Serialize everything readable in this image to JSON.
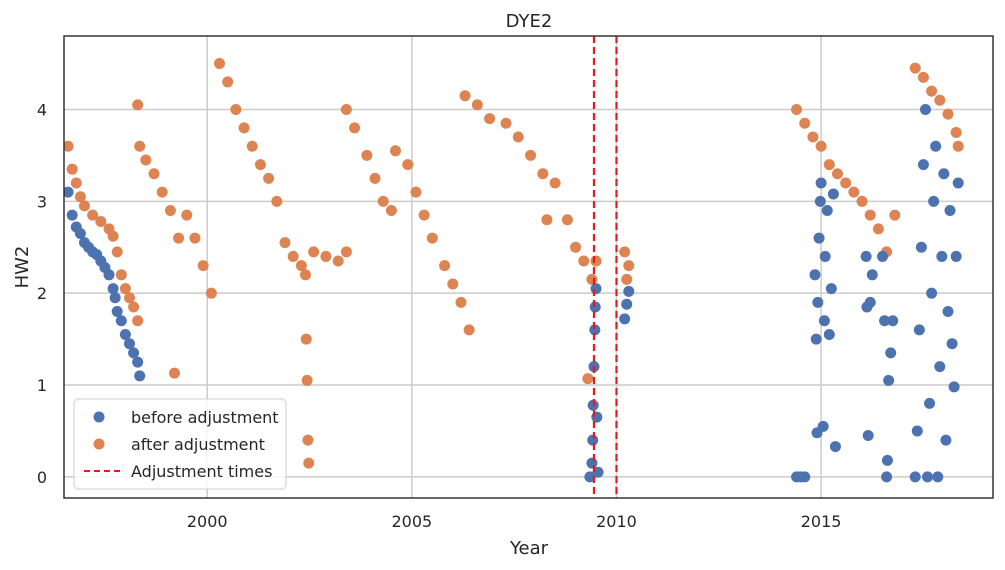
{
  "chart_data": {
    "type": "scatter",
    "title": "DYE2",
    "xlabel": "Year",
    "ylabel": "HW2",
    "xlim": [
      1996.5,
      2019.2
    ],
    "ylim": [
      -0.23,
      4.8
    ],
    "x_ticks": [
      2000,
      2005,
      2010,
      2015
    ],
    "x_tick_labels": [
      "2000",
      "2005",
      "2010",
      "2015"
    ],
    "y_ticks": [
      0,
      1,
      2,
      3,
      4
    ],
    "y_tick_labels": [
      "0",
      "1",
      "2",
      "3",
      "4"
    ],
    "grid": true,
    "legend_position": "lower-left",
    "series": [
      {
        "name": "before adjustment",
        "color": "#4c72b0",
        "marker": "circle",
        "points": [
          [
            1996.6,
            3.1
          ],
          [
            1996.7,
            2.85
          ],
          [
            1996.8,
            2.72
          ],
          [
            1996.9,
            2.65
          ],
          [
            1997.0,
            2.55
          ],
          [
            1997.1,
            2.5
          ],
          [
            1997.2,
            2.45
          ],
          [
            1997.3,
            2.42
          ],
          [
            1997.4,
            2.35
          ],
          [
            1997.5,
            2.28
          ],
          [
            1997.6,
            2.2
          ],
          [
            1997.7,
            2.05
          ],
          [
            1997.75,
            1.95
          ],
          [
            1997.8,
            1.8
          ],
          [
            1997.9,
            1.7
          ],
          [
            1998.0,
            1.55
          ],
          [
            1998.1,
            1.45
          ],
          [
            1998.2,
            1.35
          ],
          [
            1998.3,
            1.25
          ],
          [
            1998.35,
            1.1
          ],
          [
            2009.35,
            0.0
          ],
          [
            2009.4,
            0.15
          ],
          [
            2009.42,
            0.4
          ],
          [
            2009.43,
            0.78
          ],
          [
            2009.45,
            1.2
          ],
          [
            2009.47,
            1.6
          ],
          [
            2009.48,
            1.85
          ],
          [
            2009.5,
            2.05
          ],
          [
            2009.52,
            0.65
          ],
          [
            2009.55,
            0.05
          ],
          [
            2010.2,
            1.72
          ],
          [
            2010.25,
            1.88
          ],
          [
            2010.3,
            2.02
          ],
          [
            2014.4,
            0.0
          ],
          [
            2014.5,
            0.0
          ],
          [
            2014.6,
            0.0
          ],
          [
            2014.85,
            2.2
          ],
          [
            2014.88,
            1.5
          ],
          [
            2014.9,
            0.48
          ],
          [
            2014.92,
            1.9
          ],
          [
            2014.95,
            2.6
          ],
          [
            2014.98,
            3.0
          ],
          [
            2015.0,
            3.2
          ],
          [
            2015.05,
            0.55
          ],
          [
            2015.08,
            1.7
          ],
          [
            2015.1,
            2.4
          ],
          [
            2015.15,
            2.9
          ],
          [
            2015.2,
            1.55
          ],
          [
            2015.25,
            2.05
          ],
          [
            2015.3,
            3.08
          ],
          [
            2015.35,
            0.33
          ],
          [
            2016.1,
            2.4
          ],
          [
            2016.12,
            1.85
          ],
          [
            2016.15,
            0.45
          ],
          [
            2016.2,
            1.9
          ],
          [
            2016.25,
            2.2
          ],
          [
            2016.5,
            2.4
          ],
          [
            2016.55,
            1.7
          ],
          [
            2016.6,
            0.0
          ],
          [
            2016.62,
            0.18
          ],
          [
            2016.65,
            1.05
          ],
          [
            2016.7,
            1.35
          ],
          [
            2016.75,
            1.7
          ],
          [
            2017.3,
            0.0
          ],
          [
            2017.35,
            0.5
          ],
          [
            2017.4,
            1.6
          ],
          [
            2017.45,
            2.5
          ],
          [
            2017.5,
            3.4
          ],
          [
            2017.55,
            4.0
          ],
          [
            2017.6,
            0.0
          ],
          [
            2017.65,
            0.8
          ],
          [
            2017.7,
            2.0
          ],
          [
            2017.75,
            3.0
          ],
          [
            2017.8,
            3.6
          ],
          [
            2017.85,
            0.0
          ],
          [
            2017.9,
            1.2
          ],
          [
            2017.95,
            2.4
          ],
          [
            2018.0,
            3.3
          ],
          [
            2018.05,
            0.4
          ],
          [
            2018.1,
            1.8
          ],
          [
            2018.15,
            2.9
          ],
          [
            2018.2,
            1.45
          ],
          [
            2018.25,
            0.98
          ],
          [
            2018.3,
            2.4
          ],
          [
            2018.35,
            3.2
          ]
        ]
      },
      {
        "name": "after adjustment",
        "color": "#dd8452",
        "marker": "circle",
        "points": [
          [
            1996.6,
            3.6
          ],
          [
            1996.7,
            3.35
          ],
          [
            1996.8,
            3.2
          ],
          [
            1996.9,
            3.05
          ],
          [
            1997.0,
            2.95
          ],
          [
            1997.2,
            2.85
          ],
          [
            1997.4,
            2.78
          ],
          [
            1997.6,
            2.7
          ],
          [
            1997.7,
            2.62
          ],
          [
            1997.8,
            2.45
          ],
          [
            1997.9,
            2.2
          ],
          [
            1998.0,
            2.05
          ],
          [
            1998.1,
            1.95
          ],
          [
            1998.2,
            1.85
          ],
          [
            1998.3,
            1.7
          ],
          [
            1998.3,
            4.05
          ],
          [
            1998.35,
            3.6
          ],
          [
            1998.5,
            3.45
          ],
          [
            1998.7,
            3.3
          ],
          [
            1998.9,
            3.1
          ],
          [
            1999.1,
            2.9
          ],
          [
            1999.2,
            1.13
          ],
          [
            1999.3,
            2.6
          ],
          [
            1999.5,
            2.85
          ],
          [
            1999.7,
            2.6
          ],
          [
            1999.9,
            2.3
          ],
          [
            2000.1,
            2.0
          ],
          [
            2000.3,
            4.5
          ],
          [
            2000.5,
            4.3
          ],
          [
            2000.7,
            4.0
          ],
          [
            2000.9,
            3.8
          ],
          [
            2001.1,
            3.6
          ],
          [
            2001.3,
            3.4
          ],
          [
            2001.5,
            3.25
          ],
          [
            2001.7,
            3.0
          ],
          [
            2001.9,
            2.55
          ],
          [
            2002.1,
            2.4
          ],
          [
            2002.3,
            2.3
          ],
          [
            2002.4,
            2.2
          ],
          [
            2002.42,
            1.5
          ],
          [
            2002.44,
            1.05
          ],
          [
            2002.46,
            0.4
          ],
          [
            2002.48,
            0.15
          ],
          [
            2002.6,
            2.45
          ],
          [
            2002.9,
            2.4
          ],
          [
            2003.2,
            2.35
          ],
          [
            2003.4,
            2.45
          ],
          [
            2003.4,
            4.0
          ],
          [
            2003.6,
            3.8
          ],
          [
            2003.9,
            3.5
          ],
          [
            2004.1,
            3.25
          ],
          [
            2004.3,
            3.0
          ],
          [
            2004.5,
            2.9
          ],
          [
            2004.6,
            3.55
          ],
          [
            2004.9,
            3.4
          ],
          [
            2005.1,
            3.1
          ],
          [
            2005.3,
            2.85
          ],
          [
            2005.5,
            2.6
          ],
          [
            2005.8,
            2.3
          ],
          [
            2006.0,
            2.1
          ],
          [
            2006.2,
            1.9
          ],
          [
            2006.4,
            1.6
          ],
          [
            2006.3,
            4.15
          ],
          [
            2006.6,
            4.05
          ],
          [
            2006.9,
            3.9
          ],
          [
            2007.3,
            3.85
          ],
          [
            2007.6,
            3.7
          ],
          [
            2007.9,
            3.5
          ],
          [
            2008.2,
            3.3
          ],
          [
            2008.3,
            2.8
          ],
          [
            2008.5,
            3.2
          ],
          [
            2008.8,
            2.8
          ],
          [
            2009.0,
            2.5
          ],
          [
            2009.2,
            2.35
          ],
          [
            2009.3,
            1.07
          ],
          [
            2009.4,
            2.15
          ],
          [
            2009.5,
            2.35
          ],
          [
            2010.2,
            2.45
          ],
          [
            2010.3,
            2.3
          ],
          [
            2010.25,
            2.15
          ],
          [
            2014.4,
            4.0
          ],
          [
            2014.6,
            3.85
          ],
          [
            2014.8,
            3.7
          ],
          [
            2015.0,
            3.6
          ],
          [
            2015.2,
            3.4
          ],
          [
            2015.4,
            3.3
          ],
          [
            2015.6,
            3.2
          ],
          [
            2015.8,
            3.1
          ],
          [
            2016.0,
            3.0
          ],
          [
            2016.2,
            2.85
          ],
          [
            2016.4,
            2.7
          ],
          [
            2016.6,
            2.45
          ],
          [
            2016.8,
            2.85
          ],
          [
            2017.3,
            4.45
          ],
          [
            2017.5,
            4.35
          ],
          [
            2017.7,
            4.2
          ],
          [
            2017.9,
            4.1
          ],
          [
            2018.1,
            3.95
          ],
          [
            2018.3,
            3.75
          ],
          [
            2018.35,
            3.6
          ]
        ]
      },
      {
        "name": "Adjustment times",
        "color": "#e41a1c",
        "style": "dashed-vertical",
        "x": [
          2009.45,
          2010.0
        ]
      }
    ]
  }
}
